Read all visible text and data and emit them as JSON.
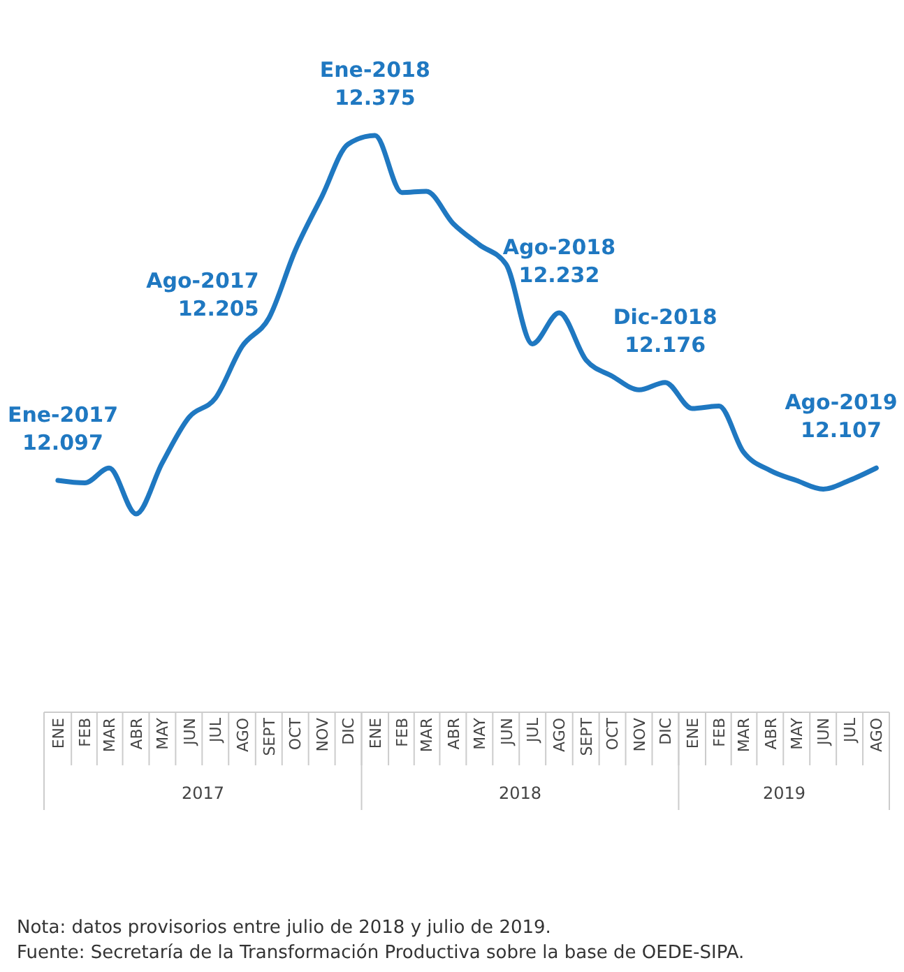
{
  "chart_data": {
    "type": "line",
    "x": [
      "2017-01",
      "2017-02",
      "2017-03",
      "2017-04",
      "2017-05",
      "2017-06",
      "2017-07",
      "2017-08",
      "2017-09",
      "2017-10",
      "2017-11",
      "2017-12",
      "2018-01",
      "2018-02",
      "2018-03",
      "2018-04",
      "2018-05",
      "2018-06",
      "2018-07",
      "2018-08",
      "2018-09",
      "2018-10",
      "2018-11",
      "2018-12",
      "2019-01",
      "2019-02",
      "2019-03",
      "2019-04",
      "2019-05",
      "2019-06",
      "2019-07",
      "2019-08"
    ],
    "xticks": [
      {
        "value": "2017-01",
        "label": "ENE"
      },
      {
        "value": "2017-02",
        "label": "FEB"
      },
      {
        "value": "2017-03",
        "label": "MAR"
      },
      {
        "value": "2017-04",
        "label": "ABR"
      },
      {
        "value": "2017-05",
        "label": "MAY"
      },
      {
        "value": "2017-06",
        "label": "JUN"
      },
      {
        "value": "2017-07",
        "label": "JUL"
      },
      {
        "value": "2017-08",
        "label": "AGO"
      },
      {
        "value": "2017-09",
        "label": "SEPT"
      },
      {
        "value": "2017-10",
        "label": "OCT"
      },
      {
        "value": "2017-11",
        "label": "NOV"
      },
      {
        "value": "2017-12",
        "label": "DIC"
      },
      {
        "value": "2018-01",
        "label": "ENE"
      },
      {
        "value": "2018-02",
        "label": "FEB"
      },
      {
        "value": "2018-03",
        "label": "MAR"
      },
      {
        "value": "2018-04",
        "label": "ABR"
      },
      {
        "value": "2018-05",
        "label": "MAY"
      },
      {
        "value": "2018-06",
        "label": "JUN"
      },
      {
        "value": "2018-07",
        "label": "JUL"
      },
      {
        "value": "2018-08",
        "label": "AGO"
      },
      {
        "value": "2018-09",
        "label": "SEPT"
      },
      {
        "value": "2018-10",
        "label": "OCT"
      },
      {
        "value": "2018-11",
        "label": "NOV"
      },
      {
        "value": "2018-12",
        "label": "DIC"
      },
      {
        "value": "2019-01",
        "label": "ENE"
      },
      {
        "value": "2019-02",
        "label": "FEB"
      },
      {
        "value": "2019-03",
        "label": "MAR"
      },
      {
        "value": "2019-04",
        "label": "ABR"
      },
      {
        "value": "2019-05",
        "label": "MAY"
      },
      {
        "value": "2019-06",
        "label": "JUN"
      },
      {
        "value": "2019-07",
        "label": "JUL"
      },
      {
        "value": "2019-08",
        "label": "AGO"
      }
    ],
    "series": [
      {
        "color": "#1f78c1",
        "values": [
          12.097,
          12.095,
          12.107,
          12.07,
          12.111,
          12.148,
          12.163,
          12.205,
          12.228,
          12.282,
          12.326,
          12.368,
          12.375,
          12.329,
          12.33,
          12.304,
          12.287,
          12.271,
          12.207,
          12.232,
          12.194,
          12.181,
          12.17,
          12.176,
          12.155,
          12.157,
          12.12,
          12.105,
          12.097,
          12.09,
          12.097,
          12.107
        ],
        "value_labels": [
          "12.097",
          null,
          null,
          null,
          null,
          null,
          null,
          "12.205",
          null,
          null,
          null,
          null,
          "12.375",
          null,
          null,
          null,
          null,
          null,
          null,
          "12.232",
          null,
          null,
          null,
          "12.176",
          null,
          null,
          null,
          null,
          null,
          null,
          null,
          "12.107"
        ]
      }
    ],
    "annotations": [
      {
        "text": "Ene-2017",
        "x": "2017-01",
        "y": 12.097
      },
      {
        "text": "Ago-2017",
        "x": "2017-08",
        "y": 12.205
      },
      {
        "text": "Ene-2018",
        "x": "2018-01",
        "y": 12.375
      },
      {
        "text": "Ago-2018",
        "x": "2018-08",
        "y": 12.232
      },
      {
        "text": "Dic-2018",
        "x": "2018-12",
        "y": 12.176
      },
      {
        "text": "Ago-2019",
        "x": "2019-08",
        "y": 12.107
      },
      "2017",
      "2018",
      "2019",
      "Nota: datos provisorios entre julio de 2018 y julio de 2019.",
      "Fuente: Secretaría de la Transformación Productiva sobre la base de OEDE-SIPA."
    ],
    "xlim": [
      "2016-12-16",
      "2019-08-16"
    ],
    "line_style": "solid",
    "marker": "none"
  }
}
